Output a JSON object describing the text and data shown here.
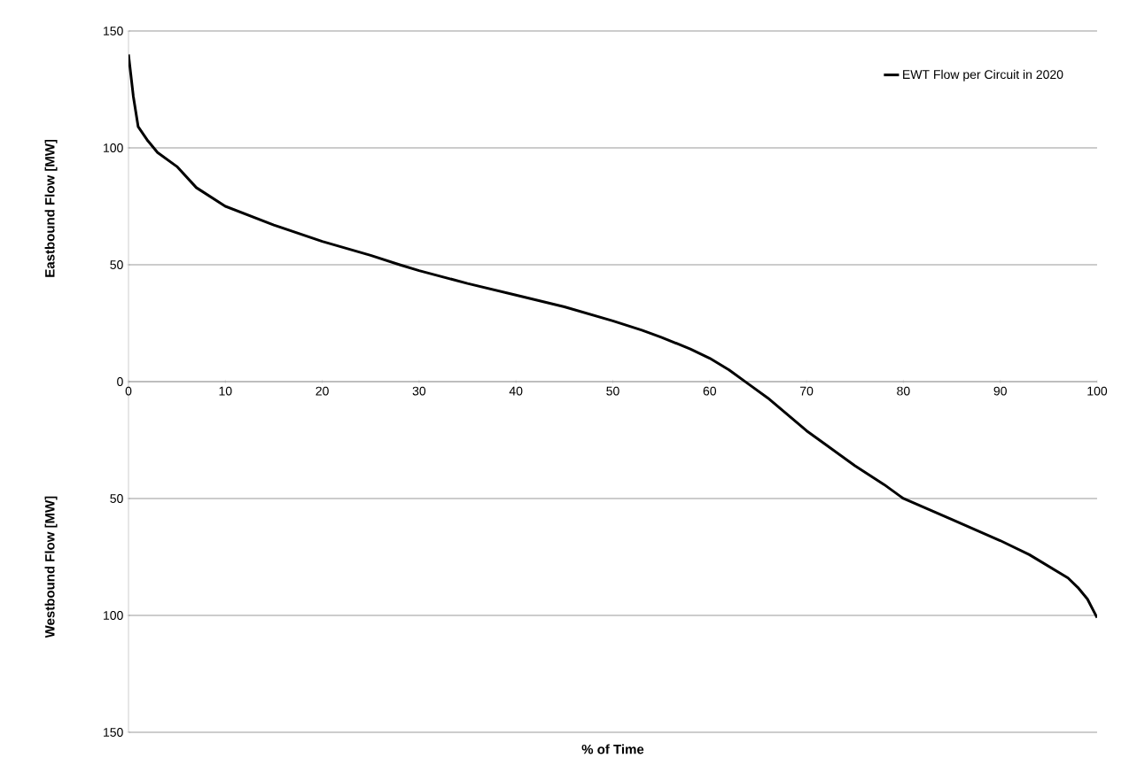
{
  "chart_data": {
    "type": "line",
    "xlabel": "% of Time",
    "ylabel": "Eastbound Flow [MW]",
    "annotations": [
      "Westbound Flow [MW]"
    ],
    "x": [
      0,
      0.5,
      1,
      2,
      3,
      5,
      7,
      10,
      15,
      20,
      25,
      28,
      30,
      35,
      40,
      45,
      50,
      53,
      55,
      58,
      60,
      62,
      64,
      66,
      68,
      70,
      72,
      75,
      78,
      80,
      85,
      90,
      93,
      95,
      97,
      98,
      99,
      100
    ],
    "series": [
      {
        "name": "EWT Flow per Circuit in 2020",
        "color": "#000000",
        "values": [
          140,
          122,
          109,
          103,
          98,
          92,
          83,
          75,
          67,
          60,
          54,
          50,
          47.5,
          42,
          37,
          32,
          26,
          22,
          19,
          14,
          10,
          5,
          -1,
          -7,
          -14,
          -21,
          -27,
          -36,
          -44,
          -50,
          -59,
          -68,
          -74,
          -79,
          -84,
          -88,
          -93,
          -101
        ]
      }
    ],
    "xlim": [
      0,
      100
    ],
    "ylim": [
      -150,
      150
    ],
    "xticks": [
      0,
      10,
      20,
      30,
      40,
      50,
      60,
      70,
      80,
      90,
      100
    ],
    "yticks": [
      {
        "value": -150,
        "label": "150"
      },
      {
        "value": -100,
        "label": "100"
      },
      {
        "value": -50,
        "label": "50"
      },
      0,
      50,
      100,
      150
    ],
    "grid": "y",
    "legend": "top right"
  }
}
